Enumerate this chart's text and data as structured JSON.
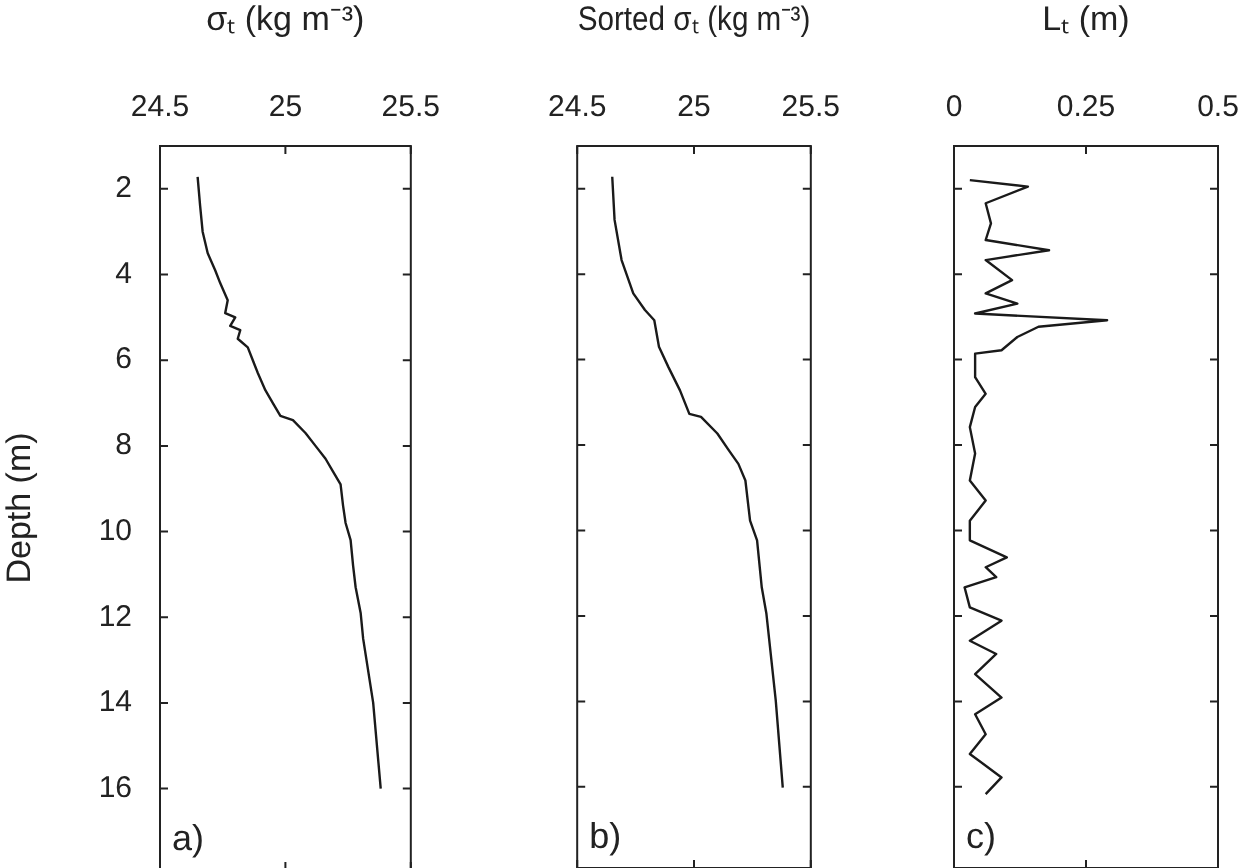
{
  "chart_data": [
    {
      "type": "line",
      "xlabel": "σₜ (kg m⁻³)",
      "ylabel": "Depth (m)",
      "xlim": [
        24.5,
        25.5
      ],
      "xticks": [
        24.5,
        25,
        25.5
      ],
      "ylim": [
        17.9,
        1
      ],
      "yticks": [
        2,
        4,
        6,
        8,
        10,
        12,
        14,
        16
      ],
      "grid": false,
      "legend": false,
      "marker": "none",
      "line_style": "solid",
      "annotations": [
        "a)"
      ],
      "series": [
        {
          "color": "#1a1a1a",
          "x": [
            24.65,
            24.66,
            24.67,
            24.69,
            24.72,
            24.74,
            24.77,
            24.76,
            24.8,
            24.78,
            24.82,
            24.81,
            24.85,
            24.87,
            24.89,
            24.92,
            24.95,
            24.98,
            25.03,
            25.08,
            25.12,
            25.16,
            25.19,
            25.22,
            25.23,
            25.24,
            25.26,
            25.27,
            25.28,
            25.3,
            25.31,
            25.35,
            25.38
          ],
          "values": [
            1.72,
            2.4,
            3.0,
            3.5,
            3.9,
            4.2,
            4.6,
            4.9,
            5.0,
            5.2,
            5.3,
            5.5,
            5.7,
            6.0,
            6.3,
            6.7,
            7.0,
            7.3,
            7.4,
            7.7,
            8.0,
            8.3,
            8.6,
            8.9,
            9.4,
            9.8,
            10.2,
            10.8,
            11.3,
            11.9,
            12.5,
            14.0,
            16.0
          ]
        }
      ]
    },
    {
      "type": "line",
      "xlabel": "Sorted σₜ (kg m⁻³)",
      "xlim": [
        24.5,
        25.5
      ],
      "xticks": [
        24.5,
        25,
        25.5
      ],
      "ylim": [
        17.9,
        1
      ],
      "yticks": [
        2,
        4,
        6,
        8,
        10,
        12,
        14,
        16
      ],
      "tick_labels": "x",
      "grid": false,
      "legend": false,
      "marker": "none",
      "line_style": "solid",
      "annotations": [
        "b)"
      ],
      "series": [
        {
          "color": "#1a1a1a",
          "x": [
            24.65,
            24.66,
            24.69,
            24.74,
            24.79,
            24.83,
            24.85,
            24.89,
            24.94,
            24.98,
            25.03,
            25.1,
            25.15,
            25.19,
            25.22,
            25.24,
            25.27,
            25.29,
            25.31,
            25.35,
            25.38
          ],
          "values": [
            1.72,
            2.73,
            3.67,
            4.45,
            4.84,
            5.08,
            5.7,
            6.17,
            6.72,
            7.27,
            7.34,
            7.73,
            8.13,
            8.44,
            8.83,
            9.77,
            10.23,
            11.33,
            11.95,
            13.98,
            16.02
          ]
        }
      ]
    },
    {
      "type": "line",
      "xlabel": "Lₜ (m)",
      "xlim": [
        0,
        0.5
      ],
      "xticks": [
        0,
        0.25,
        0.5
      ],
      "ylim": [
        17.9,
        1
      ],
      "yticks": [
        2,
        4,
        6,
        8,
        10,
        12,
        14,
        16
      ],
      "tick_labels": "x",
      "grid": false,
      "legend": false,
      "marker": "none",
      "line_style": "solid",
      "annotations": [
        "c)"
      ],
      "series": [
        {
          "color": "#1a1a1a",
          "x": [
            0.03,
            0.14,
            0.06,
            0.07,
            0.06,
            0.18,
            0.06,
            0.11,
            0.06,
            0.12,
            0.04,
            0.29,
            0.16,
            0.12,
            0.09,
            0.04,
            0.04,
            0.06,
            0.04,
            0.03,
            0.04,
            0.03,
            0.06,
            0.03,
            0.03,
            0.1,
            0.06,
            0.08,
            0.02,
            0.03,
            0.09,
            0.03,
            0.08,
            0.04,
            0.09,
            0.04,
            0.06,
            0.03,
            0.09,
            0.06
          ],
          "values": [
            1.8,
            1.95,
            2.34,
            2.81,
            3.2,
            3.44,
            3.67,
            4.14,
            4.45,
            4.69,
            4.92,
            5.08,
            5.23,
            5.47,
            5.78,
            5.86,
            6.41,
            6.8,
            7.11,
            7.58,
            8.2,
            8.83,
            9.3,
            9.77,
            10.23,
            10.63,
            10.86,
            11.09,
            11.33,
            11.8,
            12.11,
            12.58,
            12.89,
            13.36,
            13.91,
            14.3,
            14.77,
            15.23,
            15.78,
            16.17
          ]
        }
      ]
    }
  ]
}
